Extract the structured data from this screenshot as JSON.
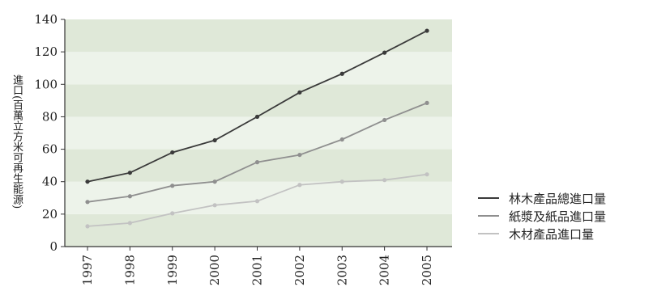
{
  "chart_data": {
    "type": "line",
    "ylabel": "進口(百萬立方米可再生能源)",
    "x": [
      "1997",
      "1998",
      "1999",
      "2000",
      "2001",
      "2002",
      "2003",
      "2004",
      "2005"
    ],
    "ylim": [
      0,
      140
    ],
    "yticks": [
      0,
      20,
      40,
      60,
      80,
      100,
      120,
      140
    ],
    "grid": "alternating horizontal bands",
    "legend_position": "right",
    "series": [
      {
        "name": "林木產品總進口量",
        "color": "#3a3a3a",
        "values": [
          40,
          45.5,
          58,
          65.5,
          80,
          95,
          106.5,
          119.5,
          133
        ]
      },
      {
        "name": "紙漿及紙品進口量",
        "color": "#8f8f8f",
        "values": [
          27.5,
          31,
          37.5,
          40,
          52,
          56.5,
          66,
          78,
          88.5
        ]
      },
      {
        "name": "木材產品進口量",
        "color": "#c2c2c2",
        "values": [
          12.5,
          14.5,
          20.5,
          25.5,
          28,
          38,
          40,
          41,
          44.5
        ]
      }
    ]
  }
}
